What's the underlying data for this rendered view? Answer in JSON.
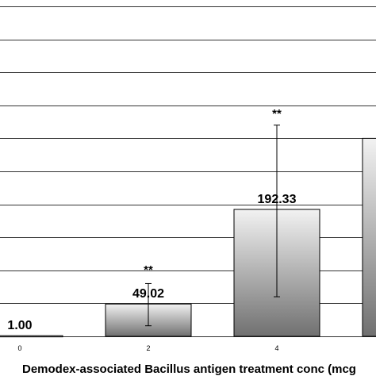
{
  "chart_data": {
    "type": "bar",
    "xlabel": "Demodex-associated Bacillus antigen treatment conc (mcg",
    "categories": [
      "0",
      "2",
      "4",
      ""
    ],
    "values": [
      1.0,
      49.02,
      192.33,
      300
    ],
    "value_labels": [
      "1.00",
      "49.02",
      "192.33",
      ""
    ],
    "error_low": [
      1.0,
      16,
      60,
      300
    ],
    "error_high": [
      1.0,
      80,
      320,
      300
    ],
    "significance": [
      "",
      "**",
      "**",
      ""
    ],
    "ylim": [
      0,
      500
    ],
    "grid": true,
    "colors": {
      "bar_top": "#f2f2f2",
      "bar_bottom": "#707070",
      "grid": "#333333"
    }
  }
}
